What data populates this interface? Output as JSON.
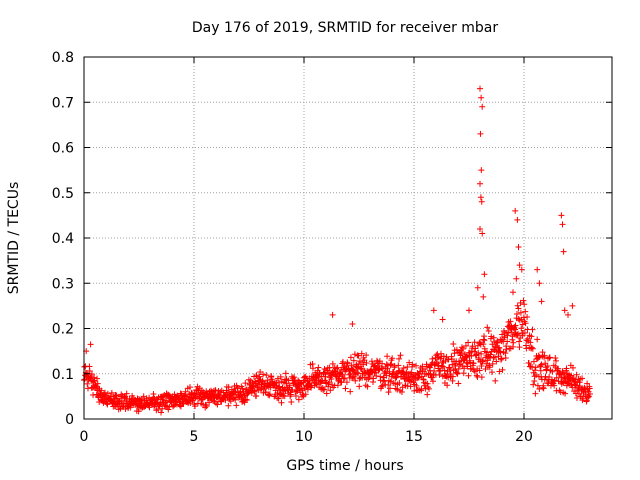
{
  "chart_data": {
    "type": "scatter",
    "title": "Day 176 of 2019, SRMTID for receiver mbar",
    "xlabel": "GPS time / hours",
    "ylabel": "SRMTID / TECUs",
    "xlim": [
      0,
      24
    ],
    "ylim": [
      0,
      0.8
    ],
    "grid": true,
    "marker": "+",
    "color": "#ff0000",
    "x_ticks": [
      0,
      5,
      10,
      15,
      20
    ],
    "y_ticks": [
      0,
      0.1,
      0.2,
      0.3,
      0.4,
      0.5,
      0.6,
      0.7,
      0.8
    ],
    "x_tick_labels": [
      "0",
      "5",
      "10",
      "15",
      "20"
    ],
    "y_tick_labels": [
      "0",
      "0.1",
      "0.2",
      "0.3",
      "0.4",
      "0.5",
      "0.6",
      "0.7",
      "0.8"
    ],
    "trend": [
      {
        "x": 0.0,
        "y": 0.1
      },
      {
        "x": 0.5,
        "y": 0.07
      },
      {
        "x": 1.0,
        "y": 0.04
      },
      {
        "x": 2.0,
        "y": 0.035
      },
      {
        "x": 3.0,
        "y": 0.035
      },
      {
        "x": 4.0,
        "y": 0.04
      },
      {
        "x": 5.0,
        "y": 0.05
      },
      {
        "x": 6.0,
        "y": 0.05
      },
      {
        "x": 7.0,
        "y": 0.05
      },
      {
        "x": 8.0,
        "y": 0.08
      },
      {
        "x": 9.0,
        "y": 0.07
      },
      {
        "x": 10.0,
        "y": 0.075
      },
      {
        "x": 11.0,
        "y": 0.09
      },
      {
        "x": 12.0,
        "y": 0.1
      },
      {
        "x": 13.0,
        "y": 0.11
      },
      {
        "x": 14.0,
        "y": 0.1
      },
      {
        "x": 15.0,
        "y": 0.09
      },
      {
        "x": 16.0,
        "y": 0.11
      },
      {
        "x": 17.0,
        "y": 0.12
      },
      {
        "x": 18.0,
        "y": 0.14
      },
      {
        "x": 19.0,
        "y": 0.15
      },
      {
        "x": 19.5,
        "y": 0.2
      },
      {
        "x": 20.0,
        "y": 0.22
      },
      {
        "x": 20.5,
        "y": 0.12
      },
      {
        "x": 21.0,
        "y": 0.1
      },
      {
        "x": 22.0,
        "y": 0.09
      },
      {
        "x": 22.5,
        "y": 0.07
      },
      {
        "x": 23.0,
        "y": 0.06
      }
    ],
    "noise": [
      {
        "x": 0.0,
        "y": 0.04
      },
      {
        "x": 1.0,
        "y": 0.02
      },
      {
        "x": 7.0,
        "y": 0.025
      },
      {
        "x": 10.0,
        "y": 0.04
      },
      {
        "x": 14.0,
        "y": 0.045
      },
      {
        "x": 17.0,
        "y": 0.05
      },
      {
        "x": 19.0,
        "y": 0.06
      },
      {
        "x": 20.0,
        "y": 0.08
      },
      {
        "x": 21.0,
        "y": 0.05
      },
      {
        "x": 23.0,
        "y": 0.03
      }
    ],
    "spikes": [
      {
        "x": 0.1,
        "y": 0.15
      },
      {
        "x": 0.3,
        "y": 0.165
      },
      {
        "x": 11.3,
        "y": 0.23
      },
      {
        "x": 12.2,
        "y": 0.21
      },
      {
        "x": 15.9,
        "y": 0.24
      },
      {
        "x": 16.3,
        "y": 0.22
      },
      {
        "x": 17.5,
        "y": 0.24
      },
      {
        "x": 18.0,
        "y": 0.73
      },
      {
        "x": 18.05,
        "y": 0.71
      },
      {
        "x": 18.1,
        "y": 0.69
      },
      {
        "x": 18.02,
        "y": 0.63
      },
      {
        "x": 18.06,
        "y": 0.55
      },
      {
        "x": 18.0,
        "y": 0.52
      },
      {
        "x": 18.04,
        "y": 0.49
      },
      {
        "x": 18.08,
        "y": 0.48
      },
      {
        "x": 18.1,
        "y": 0.41
      },
      {
        "x": 18.0,
        "y": 0.42
      },
      {
        "x": 18.2,
        "y": 0.32
      },
      {
        "x": 17.9,
        "y": 0.29
      },
      {
        "x": 18.15,
        "y": 0.27
      },
      {
        "x": 19.6,
        "y": 0.46
      },
      {
        "x": 19.7,
        "y": 0.44
      },
      {
        "x": 19.75,
        "y": 0.38
      },
      {
        "x": 19.8,
        "y": 0.34
      },
      {
        "x": 19.9,
        "y": 0.33
      },
      {
        "x": 19.65,
        "y": 0.31
      },
      {
        "x": 19.5,
        "y": 0.28
      },
      {
        "x": 20.6,
        "y": 0.33
      },
      {
        "x": 20.7,
        "y": 0.3
      },
      {
        "x": 20.8,
        "y": 0.26
      },
      {
        "x": 21.7,
        "y": 0.45
      },
      {
        "x": 21.75,
        "y": 0.43
      },
      {
        "x": 21.8,
        "y": 0.37
      },
      {
        "x": 21.85,
        "y": 0.24
      },
      {
        "x": 22.2,
        "y": 0.25
      },
      {
        "x": 22.0,
        "y": 0.23
      }
    ],
    "point_count": 1400
  }
}
